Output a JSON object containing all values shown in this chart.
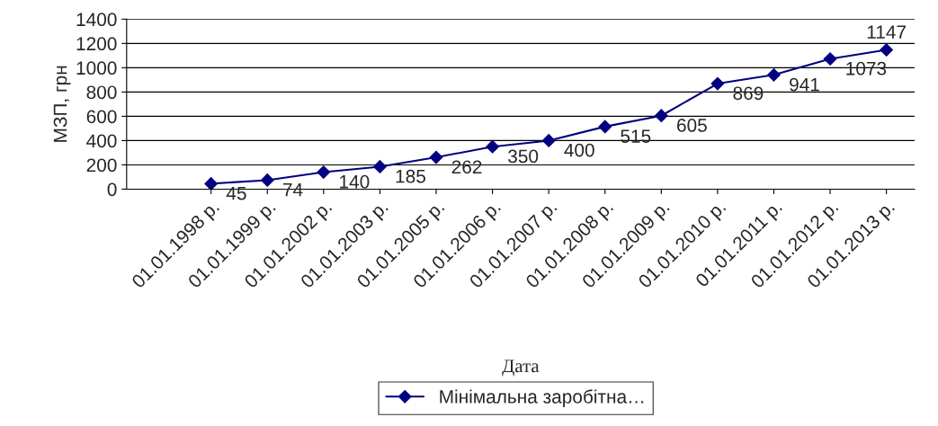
{
  "chart_data": {
    "type": "line",
    "xlabel": "Дата",
    "ylabel": "МЗП, грн",
    "categories": [
      "01.01.1998 р.",
      "01.01.1999 р.",
      "01.01.2002 р.",
      "01.01.2003 р.",
      "01.01.2005 р.",
      "01.01.2006 р.",
      "01.01.2007 р.",
      "01.01.2008 р.",
      "01.01.2009 р.",
      "01.01.2010 р.",
      "01.01.2011 р.",
      "01.01.2012 р.",
      "01.01.2013 р."
    ],
    "series": [
      {
        "name": "Мінімальна заробітна…",
        "color": "#000080",
        "values": [
          45,
          74,
          140,
          185,
          262,
          350,
          400,
          515,
          605,
          869,
          941,
          1073,
          1147
        ]
      }
    ],
    "ylim": [
      0,
      1400
    ],
    "yticks": [
      0,
      200,
      400,
      600,
      800,
      1000,
      1200,
      1400
    ],
    "grid": "y",
    "legend": "bottom",
    "marker": "diamond",
    "line_style": "solid",
    "data_labels": true
  }
}
